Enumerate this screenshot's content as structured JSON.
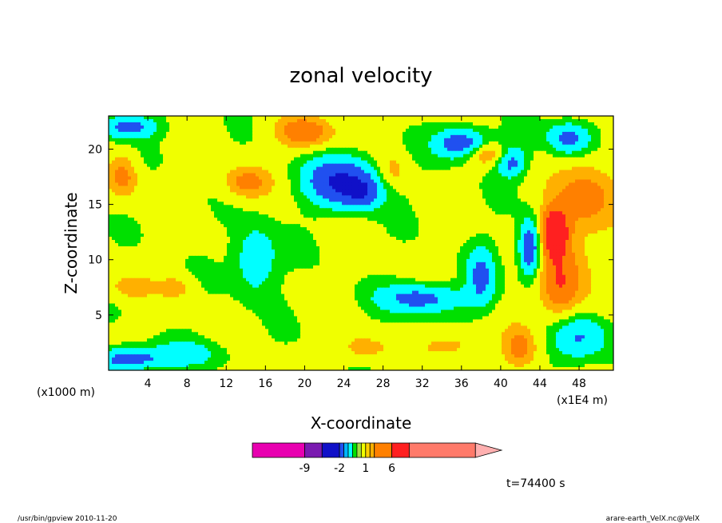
{
  "chart_data": {
    "type": "heatmap",
    "title": "zonal velocity",
    "xlabel": "X-coordinate",
    "ylabel": "Z-coordinate",
    "x_unit_left": "(x1000 m)",
    "x_unit_right": "(x1E4 m)",
    "xlim": [
      0,
      51.5
    ],
    "ylim": [
      0,
      23
    ],
    "x_ticks": [
      4,
      8,
      12,
      16,
      20,
      24,
      28,
      32,
      36,
      40,
      44,
      48
    ],
    "x_tick_labels": [
      "4",
      "8",
      "12",
      "16",
      "20",
      "24",
      "28",
      "32",
      "36",
      "40",
      "44",
      "48"
    ],
    "y_ticks": [
      5,
      10,
      15,
      20
    ],
    "y_tick_labels": [
      "5",
      "10",
      "15",
      "20"
    ],
    "colorbar": {
      "colors": [
        "#e800b0",
        "#7a1ab0",
        "#1010c8",
        "#2050f0",
        "#00b4ff",
        "#00ffff",
        "#00e000",
        "#a0e040",
        "#f0ff00",
        "#ffd000",
        "#ffb000",
        "#ff8000",
        "#ff2020",
        "#ff7a6a",
        "#ffb0b0"
      ],
      "widths": [
        6,
        2,
        2,
        0.5,
        0.5,
        0.5,
        0.5,
        0.5,
        0.5,
        0.5,
        0.5,
        2,
        2,
        7.6,
        3
      ],
      "tick_labels": [
        "-9",
        "-2",
        "1",
        "6"
      ],
      "tick_values": [
        -9,
        -2,
        1,
        6
      ]
    },
    "contour_field": {
      "palette": [
        "#1010c8",
        "#2050f0",
        "#00ffff",
        "#00e000",
        "#f0ff00",
        "#ffb000",
        "#ff8000",
        "#ff2020"
      ],
      "features": [
        {
          "x": 15,
          "z": 10,
          "amp": -2.4,
          "sx": 2.2,
          "sz": 3.0
        },
        {
          "x": 24,
          "z": 17,
          "amp": -4.5,
          "sx": 3.8,
          "sz": 2.2
        },
        {
          "x": 26,
          "z": 16,
          "amp": -2.0,
          "sx": 1.8,
          "sz": 1.2
        },
        {
          "x": 32,
          "z": 6.5,
          "amp": -3.2,
          "sx": 4.2,
          "sz": 1.3
        },
        {
          "x": 38,
          "z": 8.5,
          "amp": -2.6,
          "sx": 1.4,
          "sz": 2.6
        },
        {
          "x": 36,
          "z": 20.5,
          "amp": -3.8,
          "sx": 2.6,
          "sz": 1.4
        },
        {
          "x": 41,
          "z": 19,
          "amp": -3.5,
          "sx": 1.6,
          "sz": 1.4
        },
        {
          "x": 2,
          "z": 22,
          "amp": -3.0,
          "sx": 3.0,
          "sz": 1.0
        },
        {
          "x": 2,
          "z": 1,
          "amp": -3.5,
          "sx": 3.2,
          "sz": 1.0
        },
        {
          "x": 48,
          "z": 3,
          "amp": -2.5,
          "sx": 3.0,
          "sz": 2.2
        },
        {
          "x": 43,
          "z": 11,
          "amp": -4.5,
          "sx": 1.1,
          "sz": 2.5
        },
        {
          "x": 47,
          "z": 21,
          "amp": -3.0,
          "sx": 2.2,
          "sz": 1.5
        },
        {
          "x": 8,
          "z": 1.5,
          "amp": -1.6,
          "sx": 4.0,
          "sz": 1.2
        },
        {
          "x": 29,
          "z": 18,
          "amp": 1.6,
          "sx": 1.5,
          "sz": 1.6
        },
        {
          "x": 20,
          "z": 21.5,
          "amp": 2.7,
          "sx": 3.0,
          "sz": 1.4
        },
        {
          "x": 14,
          "z": 17,
          "amp": 2.2,
          "sx": 2.5,
          "sz": 1.5
        },
        {
          "x": 1.5,
          "z": 17.5,
          "amp": 2.2,
          "sx": 1.5,
          "sz": 2.0
        },
        {
          "x": 2,
          "z": 7.5,
          "amp": 1.4,
          "sx": 2.5,
          "sz": 1.1
        },
        {
          "x": 7,
          "z": 7.5,
          "amp": 1.4,
          "sx": 1.7,
          "sz": 1.0
        },
        {
          "x": 26,
          "z": 2,
          "amp": 1.5,
          "sx": 2.5,
          "sz": 1.2
        },
        {
          "x": 35,
          "z": 2.2,
          "amp": 1.5,
          "sx": 3.0,
          "sz": 1.2
        },
        {
          "x": 45.5,
          "z": 12.5,
          "amp": 4.5,
          "sx": 1.4,
          "sz": 2.2
        },
        {
          "x": 49,
          "z": 16,
          "amp": 2.4,
          "sx": 3.2,
          "sz": 3.0
        },
        {
          "x": 46,
          "z": 7,
          "amp": 2.2,
          "sx": 2.0,
          "sz": 3.0
        },
        {
          "x": 39,
          "z": 19.5,
          "amp": 2.5,
          "sx": 2.5,
          "sz": 1.0
        },
        {
          "x": 42,
          "z": 2,
          "amp": 2.0,
          "sx": 1.8,
          "sz": 2.0
        },
        {
          "x": 47,
          "z": 10,
          "amp": 1.5,
          "sx": 3.0,
          "sz": 4.0
        }
      ]
    },
    "annotation": "t=74400 s"
  },
  "footer": {
    "left": "/usr/bin/gpview   2010-11-20",
    "right": "arare-earth_VelX.nc@VelX"
  }
}
